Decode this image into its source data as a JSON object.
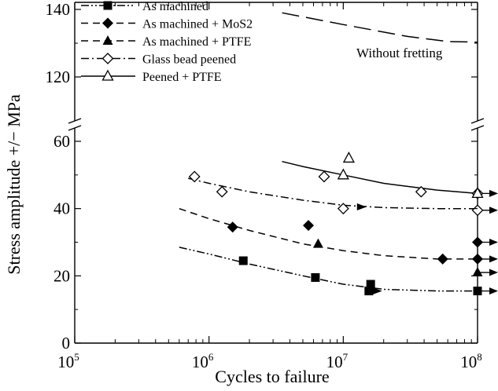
{
  "chart_data": {
    "type": "scatter",
    "title": "",
    "xlabel": "Cycles to failure",
    "ylabel": "Stress amplitude +/− MPa",
    "x_scale": "log",
    "xlim": [
      100000,
      100000000
    ],
    "x_ticks": [
      {
        "value": 100000,
        "base": "10",
        "exp": "5"
      },
      {
        "value": 1000000,
        "base": "10",
        "exp": "6"
      },
      {
        "value": 10000000,
        "base": "10",
        "exp": "7"
      },
      {
        "value": 100000000,
        "base": "10",
        "exp": "8"
      }
    ],
    "y_axis_break": true,
    "ylim_lower": [
      0,
      65
    ],
    "ylim_upper": [
      110,
      140
    ],
    "y_ticks": [
      0,
      20,
      40,
      60,
      120,
      140
    ],
    "grid": false,
    "legend_position": "top-left",
    "series": [
      {
        "name": "As machined",
        "marker": "filled-square",
        "line_style": "dash-dot-dot",
        "points": [
          [
            1800000,
            24.5
          ],
          [
            6200000,
            19.5
          ],
          [
            16000000,
            17.5
          ],
          [
            15500000,
            15.5
          ],
          [
            100000000,
            15.5
          ]
        ],
        "runout": [
          [
            100000000,
            15.5
          ]
        ],
        "fit": [
          [
            600000,
            28.5
          ],
          [
            1000000,
            26.5
          ],
          [
            2000000,
            23.5
          ],
          [
            5000000,
            20
          ],
          [
            10000000,
            17.5
          ],
          [
            20000000,
            16
          ],
          [
            50000000,
            15.5
          ],
          [
            100000000,
            15.5
          ]
        ],
        "fit_arrow": [
          17000000,
          15.5
        ]
      },
      {
        "name": "As machined + MoS2",
        "marker": "filled-diamond",
        "line_style": "dashed",
        "points": [
          [
            1500000,
            34.5
          ],
          [
            5500000,
            35
          ],
          [
            55000000,
            25
          ],
          [
            100000000,
            30
          ],
          [
            100000000,
            25
          ]
        ],
        "runout": [
          [
            100000000,
            30
          ],
          [
            100000000,
            25
          ]
        ],
        "fit": [
          [
            600000,
            40
          ],
          [
            1000000,
            37
          ],
          [
            2000000,
            33.5
          ],
          [
            5000000,
            29.5
          ],
          [
            10000000,
            27.5
          ],
          [
            20000000,
            26
          ],
          [
            50000000,
            25
          ],
          [
            100000000,
            25
          ]
        ]
      },
      {
        "name": "As machined + PTFE",
        "marker": "filled-triangle",
        "line_style": "dashed",
        "points": [
          [
            6500000,
            29.5
          ],
          [
            100000000,
            21
          ]
        ],
        "runout": [
          [
            100000000,
            21
          ]
        ]
      },
      {
        "name": "Glass bead peened",
        "marker": "open-diamond",
        "line_style": "dash-dot",
        "points": [
          [
            780000,
            49.5
          ],
          [
            1250000,
            45
          ],
          [
            7200000,
            49.5
          ],
          [
            10000000,
            40
          ],
          [
            38000000,
            45
          ],
          [
            100000000,
            44.5
          ],
          [
            100000000,
            39.5
          ]
        ],
        "runout": [
          [
            100000000,
            39.5
          ]
        ],
        "fit": [
          [
            700000,
            49
          ],
          [
            1000000,
            47.5
          ],
          [
            2000000,
            45
          ],
          [
            5000000,
            42.5
          ],
          [
            10000000,
            41
          ],
          [
            20000000,
            40.3
          ],
          [
            50000000,
            40
          ],
          [
            100000000,
            40
          ]
        ],
        "fit_arrow": [
          13000000,
          40.5
        ]
      },
      {
        "name": "Peened + PTFE",
        "marker": "open-triangle",
        "line_style": "solid",
        "points": [
          [
            11000000,
            55
          ],
          [
            10000000,
            50
          ],
          [
            100000000,
            44.5
          ]
        ],
        "runout": [
          [
            100000000,
            44.5
          ]
        ],
        "fit": [
          [
            3500000,
            54
          ],
          [
            5000000,
            52.5
          ],
          [
            10000000,
            50
          ],
          [
            20000000,
            47.5
          ],
          [
            50000000,
            45.5
          ],
          [
            100000000,
            44.5
          ]
        ]
      }
    ],
    "reference_curve": {
      "label": "Without fretting",
      "line_style": "long-dash",
      "points": [
        [
          3500000,
          139
        ],
        [
          10000000,
          135.5
        ],
        [
          30000000,
          132
        ],
        [
          60000000,
          130.5
        ],
        [
          100000000,
          130.3
        ]
      ]
    }
  }
}
